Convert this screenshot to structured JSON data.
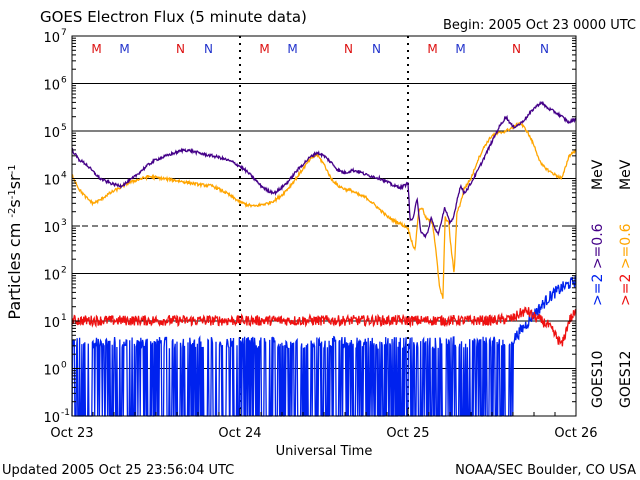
{
  "header": {
    "title": "GOES Electron Flux (5 minute data)",
    "begin": "Begin: 2005 Oct 23 0000 UTC"
  },
  "footer": {
    "updated": "Updated 2005 Oct 25 23:56:04 UTC",
    "source": "NOAA/SEC Boulder, CO USA"
  },
  "colors": {
    "goes10_2mev": "#0022ee",
    "goes12_2mev": "#ee1111",
    "goes10_06mev": "#440088",
    "goes12_06mev": "#ffa500",
    "marker_m": "#dd1111",
    "marker_n": "#2233cc"
  },
  "chart_data": {
    "type": "line",
    "title": "GOES Electron Flux (5 minute data)",
    "xlabel": "Universal Time",
    "ylabel": "Particles cm-2s-1sr-1",
    "yscale": "log",
    "ylim": [
      0.1,
      10000000
    ],
    "xlim": [
      0,
      72
    ],
    "x_unit": "hours since 2005 Oct 23 0000 UTC",
    "x_ticks": [
      {
        "x": 0,
        "label": "Oct 23"
      },
      {
        "x": 24,
        "label": "Oct 24"
      },
      {
        "x": 48,
        "label": "Oct 25"
      },
      {
        "x": 72,
        "label": "Oct 26"
      }
    ],
    "y_ticks": [
      {
        "v": 0.1,
        "base": "10",
        "exp": "-1"
      },
      {
        "v": 1,
        "base": "10",
        "exp": "0"
      },
      {
        "v": 10,
        "base": "10",
        "exp": "1"
      },
      {
        "v": 100,
        "base": "10",
        "exp": "2"
      },
      {
        "v": 1000,
        "base": "10",
        "exp": "3"
      },
      {
        "v": 10000,
        "base": "10",
        "exp": "4"
      },
      {
        "v": 100000,
        "base": "10",
        "exp": "5"
      },
      {
        "v": 1000000,
        "base": "10",
        "exp": "6"
      },
      {
        "v": 10000000,
        "base": "10",
        "exp": "7"
      }
    ],
    "grid": "horizontal lines at each decade, dashed at 10^3",
    "markers": [
      {
        "label": "M",
        "x": 3.5,
        "color": "#dd1111"
      },
      {
        "label": "M",
        "x": 7.5,
        "color": "#2233cc"
      },
      {
        "label": "N",
        "x": 15.5,
        "color": "#dd1111"
      },
      {
        "label": "N",
        "x": 19.5,
        "color": "#2233cc"
      },
      {
        "label": "M",
        "x": 27.5,
        "color": "#dd1111"
      },
      {
        "label": "M",
        "x": 31.5,
        "color": "#2233cc"
      },
      {
        "label": "N",
        "x": 39.5,
        "color": "#dd1111"
      },
      {
        "label": "N",
        "x": 43.5,
        "color": "#2233cc"
      },
      {
        "label": "M",
        "x": 51.5,
        "color": "#dd1111"
      },
      {
        "label": "M",
        "x": 55.5,
        "color": "#2233cc"
      },
      {
        "label": "N",
        "x": 63.5,
        "color": "#dd1111"
      },
      {
        "label": "N",
        "x": 67.5,
        "color": "#2233cc"
      }
    ],
    "legend": {
      "placement": "right, vertical",
      "groups": [
        {
          "prefix": "GOES10",
          "entries": [
            {
              "text": ">=2",
              "color": "#0022ee"
            },
            {
              "text": ">=0.6",
              "color": "#440088"
            }
          ]
        },
        {
          "prefix": "GOES12",
          "entries": [
            {
              "text": ">=2",
              "color": "#ee1111"
            },
            {
              "text": ">=0.6",
              "color": "#ffa500"
            }
          ]
        }
      ],
      "unit": "MeV"
    },
    "series": [
      {
        "name": "GOES10 >=0.6 MeV",
        "color": "#440088",
        "x": [
          0,
          1,
          2,
          3,
          4,
          5,
          6,
          7,
          8,
          9,
          10,
          11,
          12,
          13,
          14,
          15,
          16,
          17,
          18,
          19,
          20,
          21,
          22,
          23,
          24,
          25,
          26,
          27,
          28,
          29,
          30,
          31,
          32,
          33,
          34,
          35,
          36,
          37,
          38,
          39,
          40,
          41,
          42,
          43,
          44,
          45,
          46,
          47,
          47.8,
          48,
          48.3,
          48.8,
          49.3,
          49.8,
          50.3,
          50.8,
          51.3,
          51.8,
          52.3,
          52.8,
          53.2,
          53.6,
          54,
          54.5,
          55,
          55.5,
          56,
          56.5,
          57,
          58,
          59,
          60,
          61,
          62,
          63,
          64,
          65,
          66,
          67,
          68,
          69,
          70,
          71,
          72
        ],
        "values": [
          40000,
          25000,
          20000,
          14000,
          10000,
          8500,
          7500,
          7000,
          8500,
          11000,
          15000,
          20000,
          25000,
          28000,
          32000,
          36000,
          40000,
          38000,
          35000,
          32000,
          30000,
          28000,
          25000,
          22000,
          18000,
          14000,
          10000,
          7000,
          5500,
          5000,
          6500,
          9000,
          14000,
          20000,
          28000,
          35000,
          30000,
          22000,
          15000,
          13000,
          15000,
          14000,
          12000,
          11000,
          10000,
          8500,
          7000,
          6500,
          7500,
          9000,
          1300,
          1500,
          4000,
          800,
          600,
          700,
          1500,
          900,
          700,
          1200,
          2500,
          1800,
          1100,
          1500,
          3500,
          7000,
          5000,
          6000,
          8000,
          15000,
          30000,
          60000,
          120000,
          200000,
          120000,
          140000,
          200000,
          300000,
          400000,
          300000,
          250000,
          200000,
          150000,
          180000
        ]
      },
      {
        "name": "GOES12 >=0.6 MeV",
        "color": "#ffa500",
        "x": [
          0,
          1,
          2,
          3,
          4,
          5,
          6,
          7,
          8,
          9,
          10,
          11,
          12,
          13,
          14,
          15,
          16,
          17,
          18,
          19,
          20,
          21,
          22,
          23,
          24,
          25,
          26,
          27,
          28,
          29,
          30,
          31,
          32,
          33,
          34,
          35,
          36,
          37,
          38,
          39,
          40,
          41,
          42,
          43,
          44,
          45,
          46,
          47,
          48,
          48.5,
          49,
          49.5,
          50,
          50.5,
          51,
          51.5,
          52,
          52.5,
          53,
          53.3,
          53.8,
          54.2,
          54.6,
          55,
          55.5,
          56,
          57,
          58,
          59,
          60,
          61,
          62,
          63,
          64,
          65,
          66,
          67,
          68,
          69,
          70,
          71,
          72
        ],
        "values": [
          12000,
          6000,
          4000,
          3000,
          3500,
          4500,
          5500,
          6500,
          8000,
          9000,
          10000,
          11000,
          10500,
          10000,
          9500,
          9000,
          8500,
          8000,
          7500,
          7200,
          7000,
          6000,
          5000,
          4000,
          3200,
          2800,
          2600,
          2800,
          3000,
          3500,
          4500,
          6500,
          10000,
          16000,
          25000,
          32000,
          20000,
          10000,
          7000,
          6000,
          5500,
          4500,
          4000,
          3000,
          2200,
          1600,
          1300,
          1100,
          900,
          500,
          300,
          2000,
          2500,
          1500,
          1300,
          1200,
          300,
          50,
          30,
          1500,
          1200,
          300,
          100,
          2000,
          3000,
          6000,
          10000,
          25000,
          50000,
          80000,
          90000,
          100000,
          120000,
          150000,
          100000,
          50000,
          20000,
          15000,
          12000,
          10000,
          30000,
          40000
        ]
      },
      {
        "name": "GOES10 >=2 MeV",
        "color": "#0022ee",
        "x": [
          0,
          2,
          4,
          6,
          8,
          10,
          12,
          14,
          16,
          18,
          20,
          22,
          24,
          26,
          28,
          30,
          32,
          34,
          36,
          38,
          40,
          42,
          44,
          46,
          48,
          50,
          52,
          54,
          56,
          58,
          60,
          62,
          63,
          64,
          65,
          66,
          67,
          68,
          69,
          70,
          71,
          72
        ],
        "values": [
          3.5,
          3.5,
          3.5,
          3.5,
          3.5,
          3.5,
          3.5,
          3.5,
          3.5,
          3.5,
          3.5,
          3.5,
          3.5,
          3.5,
          3.5,
          3.5,
          3.5,
          3.5,
          3.5,
          3.5,
          3.5,
          3.5,
          3.5,
          3.5,
          3.5,
          3.5,
          3.5,
          3.5,
          3.5,
          3.5,
          3.5,
          3.5,
          4,
          6,
          9,
          14,
          20,
          30,
          40,
          50,
          60,
          70
        ],
        "dropouts_to": 0.1,
        "dropout_span": [
          0,
          63
        ]
      },
      {
        "name": "GOES12 >=2 MeV",
        "color": "#ee1111",
        "x": [
          0,
          3,
          6,
          9,
          12,
          15,
          18,
          21,
          24,
          27,
          30,
          33,
          36,
          39,
          42,
          45,
          48,
          51,
          54,
          57,
          60,
          63,
          64,
          65,
          66,
          67,
          68,
          69,
          70,
          71,
          72
        ],
        "values": [
          10,
          10,
          10,
          10,
          10,
          10,
          10,
          10,
          10,
          10,
          10,
          10,
          10,
          10,
          10,
          10,
          10,
          10,
          10,
          10,
          10,
          11,
          14,
          16,
          12,
          10,
          8,
          5,
          3,
          10,
          15
        ]
      }
    ]
  }
}
